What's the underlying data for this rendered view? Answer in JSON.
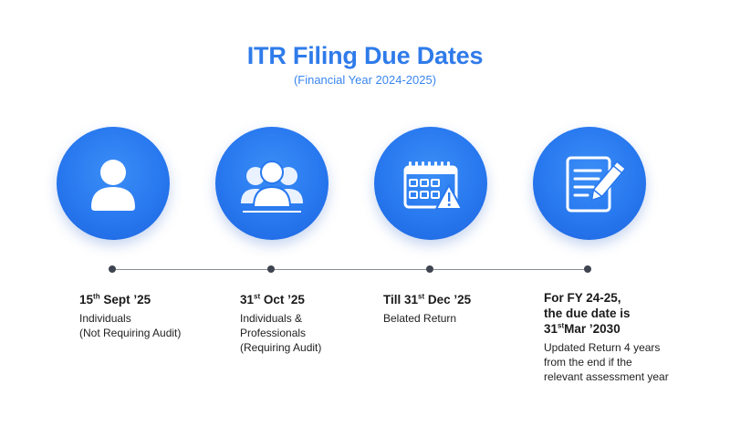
{
  "header": {
    "title": "ITR Filing Due Dates",
    "subtitle": "(Financial Year 2024-2025)"
  },
  "colors": {
    "accent": "#2f7bea",
    "circle": "#2878ef",
    "timeline": "#8a8f96",
    "dot": "#3f4550"
  },
  "steps": [
    {
      "icon": "person-icon",
      "date_pre": "15",
      "date_sup": "th",
      "date_post": " Sept ’25",
      "desc_lines": [
        "Individuals",
        "(Not Requiring Audit)"
      ]
    },
    {
      "icon": "group-icon",
      "date_pre": "31",
      "date_sup": "st",
      "date_post": " Oct ’25",
      "desc_lines": [
        "Individuals &",
        "Professionals",
        "(Requiring Audit)"
      ]
    },
    {
      "icon": "calendar-warning-icon",
      "date_pre": "Till 31",
      "date_sup": "st",
      "date_post": " Dec ’25",
      "desc_lines": [
        "Belated Return"
      ]
    },
    {
      "icon": "document-edit-icon",
      "date_lines": [
        "For FY 24-25,",
        "the due date is"
      ],
      "date_pre": "31",
      "date_sup": "st",
      "date_post": "Mar ’2030",
      "desc_lines": [
        "Updated Return 4 years",
        "from the end if the",
        "relevant assessment year"
      ]
    }
  ]
}
